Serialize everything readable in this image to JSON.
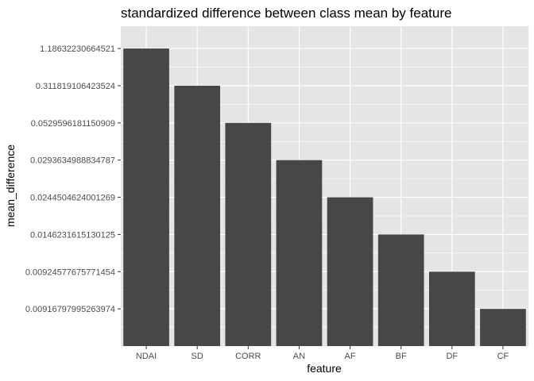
{
  "chart_data": {
    "type": "bar",
    "title": "standardized difference between class mean by feature",
    "xlabel": "feature",
    "ylabel": "mean_difference",
    "categories": [
      "NDAI",
      "SD",
      "CORR",
      "AN",
      "AF",
      "BF",
      "DF",
      "CF"
    ],
    "values": [
      1.18632230664521,
      0.311819106423524,
      0.0529596181150909,
      0.0293634988834787,
      0.0244504624001269,
      0.0146231615130125,
      0.00924577675771454,
      0.00916797995263974
    ],
    "y_tick_labels": [
      "1.18632230664521",
      "0.311819106423524",
      "0.0529596181150909",
      "0.0293634988834787",
      "0.0244504624001269",
      "0.0146231615130125",
      "0.00924577675771454",
      "0.00916797995263974"
    ],
    "y_axis": "discrete",
    "grid": true,
    "colors": {
      "panel": "#e5e5e5",
      "grid": "#ffffff",
      "bar": "#474747",
      "tick": "#333333"
    }
  }
}
